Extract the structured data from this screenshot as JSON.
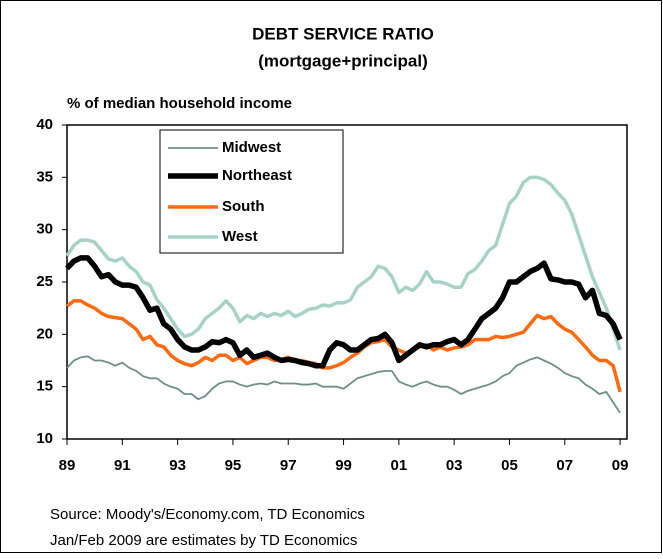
{
  "chart_data": {
    "type": "line",
    "title": "DEBT SERVICE RATIO",
    "subtitle": "(mortgage+principal)",
    "ylabel": "% of median household income",
    "notes": [
      "Source: Moody's/Economy.com, TD Economics",
      "Jan/Feb 2009 are estimates by TD Economics"
    ],
    "x": [
      1989,
      1989.25,
      1989.5,
      1989.75,
      1990,
      1990.25,
      1990.5,
      1990.75,
      1991,
      1991.25,
      1991.5,
      1991.75,
      1992,
      1992.25,
      1992.5,
      1992.75,
      1993,
      1993.25,
      1993.5,
      1993.75,
      1994,
      1994.25,
      1994.5,
      1994.75,
      1995,
      1995.25,
      1995.5,
      1995.75,
      1996,
      1996.25,
      1996.5,
      1996.75,
      1997,
      1997.25,
      1997.5,
      1997.75,
      1998,
      1998.25,
      1998.5,
      1998.75,
      1999,
      1999.25,
      1999.5,
      1999.75,
      2000,
      2000.25,
      2000.5,
      2000.75,
      2001,
      2001.25,
      2001.5,
      2001.75,
      2002,
      2002.25,
      2002.5,
      2002.75,
      2003,
      2003.25,
      2003.5,
      2003.75,
      2004,
      2004.25,
      2004.5,
      2004.75,
      2005,
      2005.25,
      2005.5,
      2005.75,
      2006,
      2006.25,
      2006.5,
      2006.75,
      2007,
      2007.25,
      2007.5,
      2007.75,
      2008,
      2008.25,
      2008.5,
      2008.75,
      2009
    ],
    "series": [
      {
        "name": "Midwest",
        "color": "#6f8f89",
        "values": [
          16.8,
          17.5,
          17.8,
          17.9,
          17.5,
          17.5,
          17.3,
          17,
          17.3,
          16.8,
          16.5,
          16,
          15.8,
          15.8,
          15.3,
          15,
          14.8,
          14.3,
          14.3,
          13.8,
          14.1,
          14.8,
          15.3,
          15.5,
          15.5,
          15.2,
          15,
          15.2,
          15.3,
          15.2,
          15.5,
          15.3,
          15.3,
          15.3,
          15.2,
          15.2,
          15.3,
          15,
          15,
          15,
          14.8,
          15.3,
          15.8,
          16,
          16.2,
          16.4,
          16.5,
          16.5,
          15.5,
          15.2,
          15,
          15.3,
          15.5,
          15.2,
          15,
          15,
          14.7,
          14.3,
          14.6,
          14.8,
          15,
          15.2,
          15.5,
          16,
          16.3,
          17,
          17.3,
          17.6,
          17.8,
          17.5,
          17.2,
          16.8,
          16.3,
          16,
          15.8,
          15.2,
          14.8,
          14.3,
          14.5,
          13.5,
          12.5
        ]
      },
      {
        "name": "Northeast",
        "color": "#000000",
        "values": [
          26.3,
          27,
          27.3,
          27.3,
          26.5,
          25.5,
          25.7,
          25,
          24.7,
          24.7,
          24.5,
          23.5,
          22.3,
          22.5,
          21,
          20.5,
          19.5,
          18.8,
          18.5,
          18.5,
          18.8,
          19.3,
          19.2,
          19.5,
          19.2,
          18,
          18.5,
          17.8,
          18,
          18.2,
          17.8,
          17.5,
          17.6,
          17.5,
          17.3,
          17.2,
          17,
          17,
          18.5,
          19.2,
          19,
          18.5,
          18.5,
          19,
          19.5,
          19.6,
          20,
          19.2,
          17.5,
          18,
          18.5,
          19,
          18.8,
          19,
          19,
          19.3,
          19.5,
          19,
          19.5,
          20.5,
          21.5,
          22,
          22.5,
          23.5,
          25,
          25,
          25.5,
          26,
          26.3,
          26.8,
          25.3,
          25.2,
          25,
          25,
          24.8,
          23.5,
          24.2,
          22,
          21.8,
          21,
          19.5
        ]
      },
      {
        "name": "South",
        "color": "#ff6a10",
        "values": [
          22.7,
          23.2,
          23.2,
          22.8,
          22.5,
          22,
          21.7,
          21.6,
          21.5,
          21,
          20.5,
          19.5,
          19.8,
          19,
          18.8,
          18,
          17.5,
          17.2,
          17,
          17.3,
          17.8,
          17.5,
          18,
          18,
          17.5,
          17.8,
          17.2,
          17.5,
          17.8,
          17.8,
          17.5,
          17.6,
          17.8,
          17.5,
          17.5,
          17.3,
          17.2,
          16.8,
          16.8,
          17,
          17.3,
          17.8,
          18.2,
          18.8,
          19.2,
          19.3,
          19.5,
          18.8,
          18.5,
          18.2,
          18.5,
          18.8,
          19,
          18.5,
          18.8,
          18.5,
          18.7,
          18.8,
          19,
          19.5,
          19.5,
          19.5,
          19.8,
          19.7,
          19.8,
          20,
          20.2,
          21,
          21.8,
          21.5,
          21.7,
          21,
          20.5,
          20.2,
          19.5,
          18.8,
          18,
          17.5,
          17.5,
          17,
          14.5
        ]
      },
      {
        "name": "West",
        "color": "#a6d3c6",
        "values": [
          27.5,
          28.5,
          29,
          29,
          28.8,
          28,
          27.2,
          27,
          27.3,
          26.5,
          26,
          25,
          24.7,
          23.3,
          22.5,
          21.5,
          20.5,
          19.8,
          20,
          20.5,
          21.5,
          22,
          22.5,
          23.2,
          22.5,
          21.2,
          21.8,
          21.5,
          22,
          21.7,
          22,
          21.8,
          22.2,
          21.7,
          22,
          22.4,
          22.5,
          22.8,
          22.7,
          23,
          23,
          23.3,
          24.5,
          25,
          25.5,
          26.5,
          26.3,
          25.5,
          24,
          24.5,
          24.2,
          24.8,
          26,
          25,
          25,
          24.8,
          24.5,
          24.5,
          25.8,
          26.2,
          27,
          28,
          28.5,
          30.5,
          32.5,
          33.2,
          34.5,
          35,
          35,
          34.8,
          34.3,
          33.5,
          32.8,
          31.5,
          29.5,
          27.5,
          25.5,
          24,
          22.5,
          20.5,
          18.5
        ]
      }
    ],
    "xlim": [
      1989,
      2009.25
    ],
    "xticks": [
      {
        "value": 1989,
        "label": "89"
      },
      {
        "value": 1991,
        "label": "91"
      },
      {
        "value": 1993,
        "label": "93"
      },
      {
        "value": 1995,
        "label": "95"
      },
      {
        "value": 1997,
        "label": "97"
      },
      {
        "value": 1999,
        "label": "99"
      },
      {
        "value": 2001,
        "label": "01"
      },
      {
        "value": 2003,
        "label": "03"
      },
      {
        "value": 2005,
        "label": "05"
      },
      {
        "value": 2007,
        "label": "07"
      },
      {
        "value": 2009,
        "label": "09"
      }
    ],
    "ylim": [
      10,
      40
    ],
    "yticks": [
      10,
      15,
      20,
      25,
      30,
      35,
      40
    ],
    "grid": false,
    "legend": "upper left"
  }
}
